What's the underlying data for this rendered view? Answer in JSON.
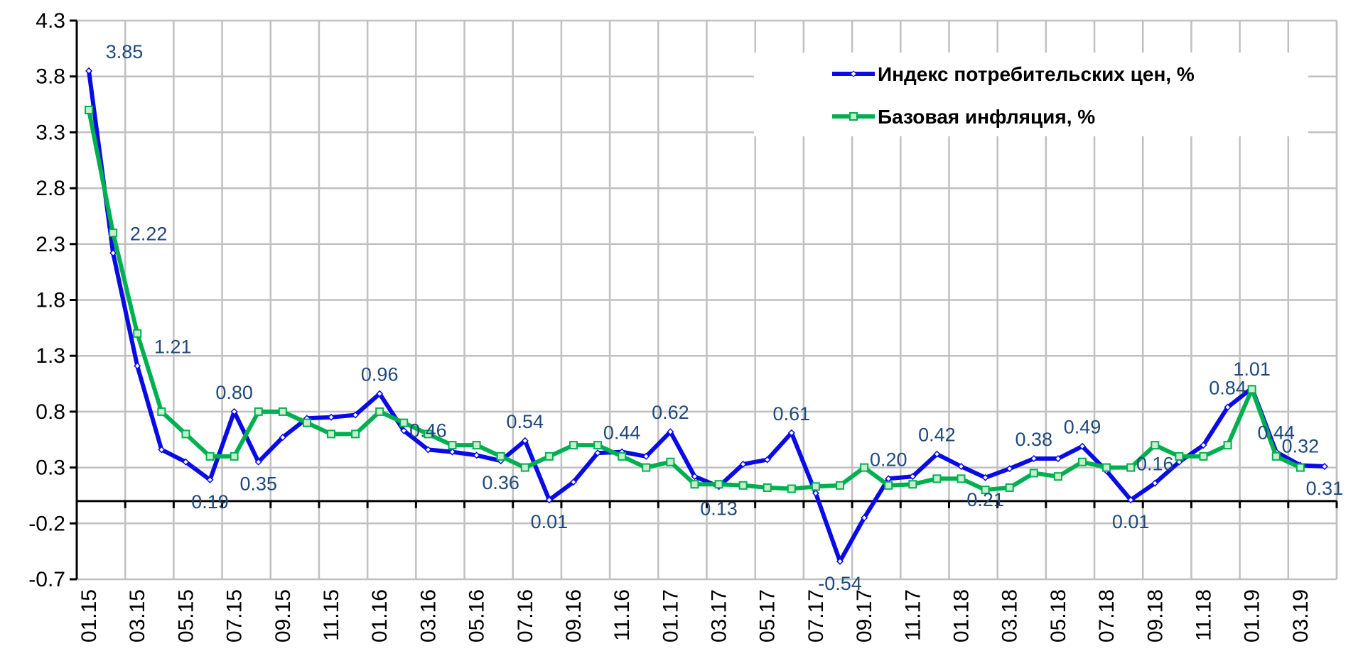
{
  "chart_data": {
    "type": "line",
    "categories": [
      "01.15",
      null,
      "03.15",
      null,
      "05.15",
      null,
      "07.15",
      null,
      "09.15",
      null,
      "11.15",
      null,
      "01.16",
      null,
      "03.16",
      null,
      "05.16",
      null,
      "07.16",
      null,
      "09.16",
      null,
      "11.16",
      null,
      "01.17",
      null,
      "03.17",
      null,
      "05.17",
      null,
      "07.17",
      null,
      "09.17",
      null,
      "11.17",
      null,
      "01.18",
      null,
      "03.18",
      null,
      "05.18",
      null,
      "07.18",
      null,
      "09.18",
      null,
      "11.18",
      null,
      "01.19",
      null,
      "03.19",
      null
    ],
    "series": [
      {
        "name": "Индекс потребительских цен, %",
        "color": "#0a0ae6",
        "marker": "diamond",
        "values": [
          3.85,
          2.22,
          1.21,
          0.46,
          0.35,
          0.19,
          0.8,
          0.35,
          0.57,
          0.74,
          0.75,
          0.77,
          0.96,
          0.63,
          0.46,
          0.44,
          0.41,
          0.36,
          0.54,
          0.01,
          0.17,
          0.43,
          0.44,
          0.4,
          0.62,
          0.22,
          0.13,
          0.33,
          0.37,
          0.61,
          0.07,
          -0.54,
          -0.15,
          0.2,
          0.22,
          0.42,
          0.31,
          0.21,
          0.29,
          0.38,
          0.38,
          0.49,
          0.27,
          0.01,
          0.16,
          0.35,
          0.5,
          0.84,
          1.01,
          0.44,
          0.32,
          0.31
        ],
        "value_labels": [
          "3.85",
          "2.22",
          "1.21",
          null,
          null,
          "0.19",
          "0.80",
          "0.35",
          null,
          null,
          null,
          null,
          "0.96",
          null,
          "0.46",
          null,
          null,
          "0.36",
          "0.54",
          "0.01",
          null,
          null,
          "0.44",
          null,
          "0.62",
          null,
          "0.13",
          null,
          null,
          "0.61",
          null,
          "-0.54",
          null,
          "0.20",
          null,
          "0.42",
          null,
          "0.21",
          null,
          "0.38",
          null,
          "0.49",
          null,
          "0.01",
          "0.16",
          null,
          null,
          "0.84",
          "1.01",
          "0.44",
          "0.32",
          "0.31"
        ]
      },
      {
        "name": "Базовая инфляция, %",
        "color": "#00b050",
        "marker": "square",
        "values": [
          3.5,
          2.4,
          1.5,
          0.8,
          0.6,
          0.4,
          0.4,
          0.8,
          0.8,
          0.7,
          0.6,
          0.6,
          0.8,
          0.7,
          0.6,
          0.5,
          0.5,
          0.4,
          0.3,
          0.4,
          0.5,
          0.5,
          0.4,
          0.3,
          0.35,
          0.15,
          0.15,
          0.14,
          0.12,
          0.11,
          0.13,
          0.14,
          0.3,
          0.14,
          0.15,
          0.2,
          0.2,
          0.1,
          0.12,
          0.25,
          0.22,
          0.35,
          0.3,
          0.3,
          0.5,
          0.4,
          0.4,
          0.5,
          1.0,
          0.4,
          0.3,
          null
        ]
      }
    ],
    "ylim": [
      -0.7,
      4.3
    ],
    "yticks": [
      -0.7,
      -0.2,
      0.3,
      0.8,
      1.3,
      1.8,
      2.3,
      2.8,
      3.3,
      3.8,
      4.3
    ],
    "grid": true,
    "legend": "upper right"
  }
}
